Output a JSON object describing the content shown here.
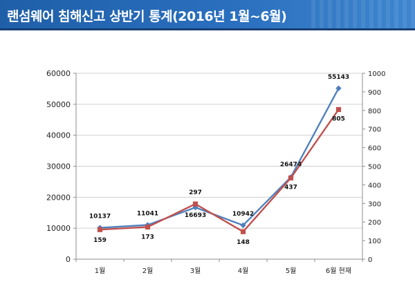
{
  "page_title": "랜섬웨어 침해신고 상반기 통계(2016년 1월~6월)",
  "colors": {
    "banner": "#2a6fbe",
    "series_blue": "#4f81bd",
    "series_red": "#c0504d",
    "axis": "#8c8c8c"
  },
  "chart_data": {
    "type": "line",
    "categories": [
      "1월",
      "2월",
      "3월",
      "4월",
      "5월",
      "6월 현재"
    ],
    "y_left": {
      "ticks": [
        "0",
        "10000",
        "20000",
        "30000",
        "40000",
        "50000",
        "60000"
      ],
      "range": [
        0,
        60000
      ]
    },
    "y_right": {
      "ticks": [
        "0",
        "100",
        "200",
        "300",
        "400",
        "500",
        "600",
        "700",
        "800",
        "900",
        "1000"
      ],
      "range": [
        0,
        1000
      ]
    },
    "grid": true,
    "series": [
      {
        "axis": "left",
        "color": "#4f81bd",
        "marker": "diamond",
        "values": [
          10137,
          11041,
          16693,
          10942,
          26474,
          55143
        ],
        "labels": [
          "10137",
          "11041",
          "16693",
          "10942",
          "26474",
          "55143"
        ]
      },
      {
        "axis": "right",
        "color": "#c0504d",
        "marker": "square",
        "values": [
          159,
          173,
          297,
          148,
          437,
          805
        ],
        "labels": [
          "159",
          "173",
          "297",
          "148",
          "437",
          "805"
        ]
      }
    ]
  }
}
